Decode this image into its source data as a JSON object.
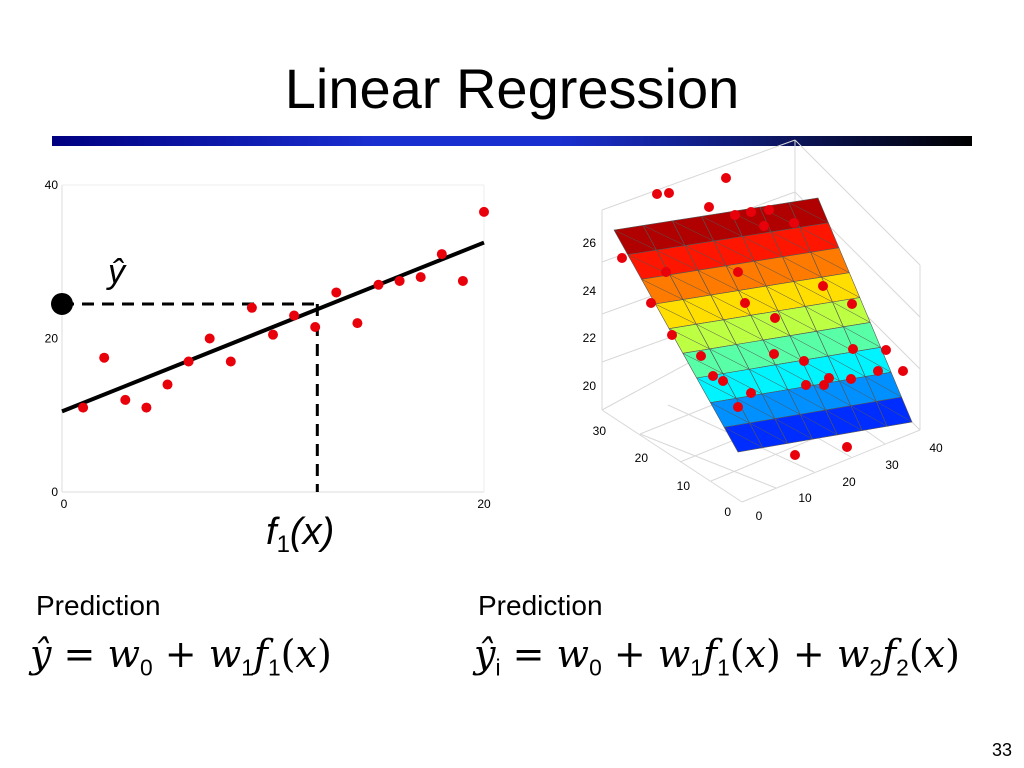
{
  "slide": {
    "title": "Linear Regression",
    "page_number": "33"
  },
  "left_plot": {
    "yhat_label": "ŷ",
    "f_label": "f",
    "f_sub": "1",
    "f_arg": "(x)",
    "x_ticks": [
      "0",
      "20"
    ],
    "y_ticks": [
      "0",
      "20",
      "40"
    ]
  },
  "right_plot": {
    "z_ticks": [
      "20",
      "22",
      "24",
      "26"
    ],
    "y_ticks": [
      "0",
      "10",
      "20",
      "30"
    ],
    "x_ticks": [
      "0",
      "10",
      "20",
      "30",
      "40"
    ]
  },
  "left_prediction": {
    "label": "Prediction",
    "formula": "ŷ = w0 + w1 f1(x)"
  },
  "right_prediction": {
    "label": "Prediction",
    "formula": "ŷi = w0 + w1 f1(x) + w2 f2(x)"
  },
  "chart_data": [
    {
      "type": "scatter",
      "title": "",
      "xlim": [
        0,
        20
      ],
      "ylim": [
        0,
        40
      ],
      "points": {
        "x": [
          1,
          2,
          3,
          4,
          5,
          6,
          7,
          8,
          9,
          10,
          11,
          12,
          13,
          14,
          15,
          16,
          17,
          18,
          19,
          20
        ],
        "y": [
          11,
          17.5,
          12,
          11,
          14,
          17,
          20,
          17,
          24,
          20.5,
          23,
          21.5,
          26,
          22,
          27,
          27.5,
          28,
          31,
          27.5,
          36.5
        ]
      },
      "fit_line": {
        "x": [
          0,
          20
        ],
        "y": [
          10.5,
          32.5
        ]
      },
      "highlight": {
        "x": 0,
        "y": 24.5
      },
      "query_x": 12.1,
      "colors": {
        "points": "#e8000b",
        "line": "#000000",
        "highlight": "#000000"
      }
    },
    {
      "type": "surface3d",
      "zlim": [
        20,
        26
      ],
      "xlim": [
        0,
        40
      ],
      "ylim": [
        0,
        30
      ],
      "colormap": "jet",
      "colors": {
        "points": "#e8000b"
      }
    }
  ]
}
